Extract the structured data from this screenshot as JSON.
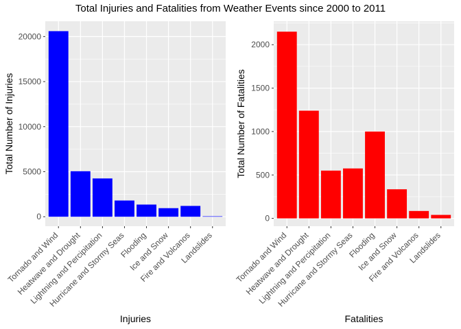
{
  "title": "Total Injuries and Fatalities from Weather Events since 2000 to 2011",
  "chart_data": [
    {
      "type": "bar",
      "categories": [
        "Tornado and Wind",
        "Heatwave and Drought",
        "Lightning and Percipitation",
        "Hurricane and Stormy Seas",
        "Flooding",
        "Ice and Snow",
        "Fire and Volcanos",
        "Landslides"
      ],
      "values": [
        20600,
        5050,
        4250,
        1800,
        1350,
        950,
        1200,
        50
      ],
      "xlabel": "Injuries",
      "ylabel": "Total Number of Injuries",
      "yticks": [
        0,
        5000,
        10000,
        15000,
        20000
      ],
      "ylim": [
        -1050,
        21700
      ],
      "bar_color": "#0000FF",
      "panel_color": "#EBEBEB",
      "grid": true,
      "legend": "none"
    },
    {
      "type": "bar",
      "categories": [
        "Tornado and Wind",
        "Heatwave and Drought",
        "Lightning and Percipitation",
        "Hurricane and Stormy Seas",
        "Flooding",
        "Ice and Snow",
        "Fire and Volcanos",
        "Landslides"
      ],
      "values": [
        2150,
        1240,
        550,
        575,
        1000,
        335,
        85,
        40
      ],
      "xlabel": "Fatalities",
      "ylabel": "Total Number of Fatalities",
      "yticks": [
        0,
        500,
        1000,
        1500,
        2000
      ],
      "ylim": [
        -90,
        2270
      ],
      "bar_color": "#FF0000",
      "panel_color": "#EBEBEB",
      "grid": true,
      "legend": "none"
    }
  ]
}
